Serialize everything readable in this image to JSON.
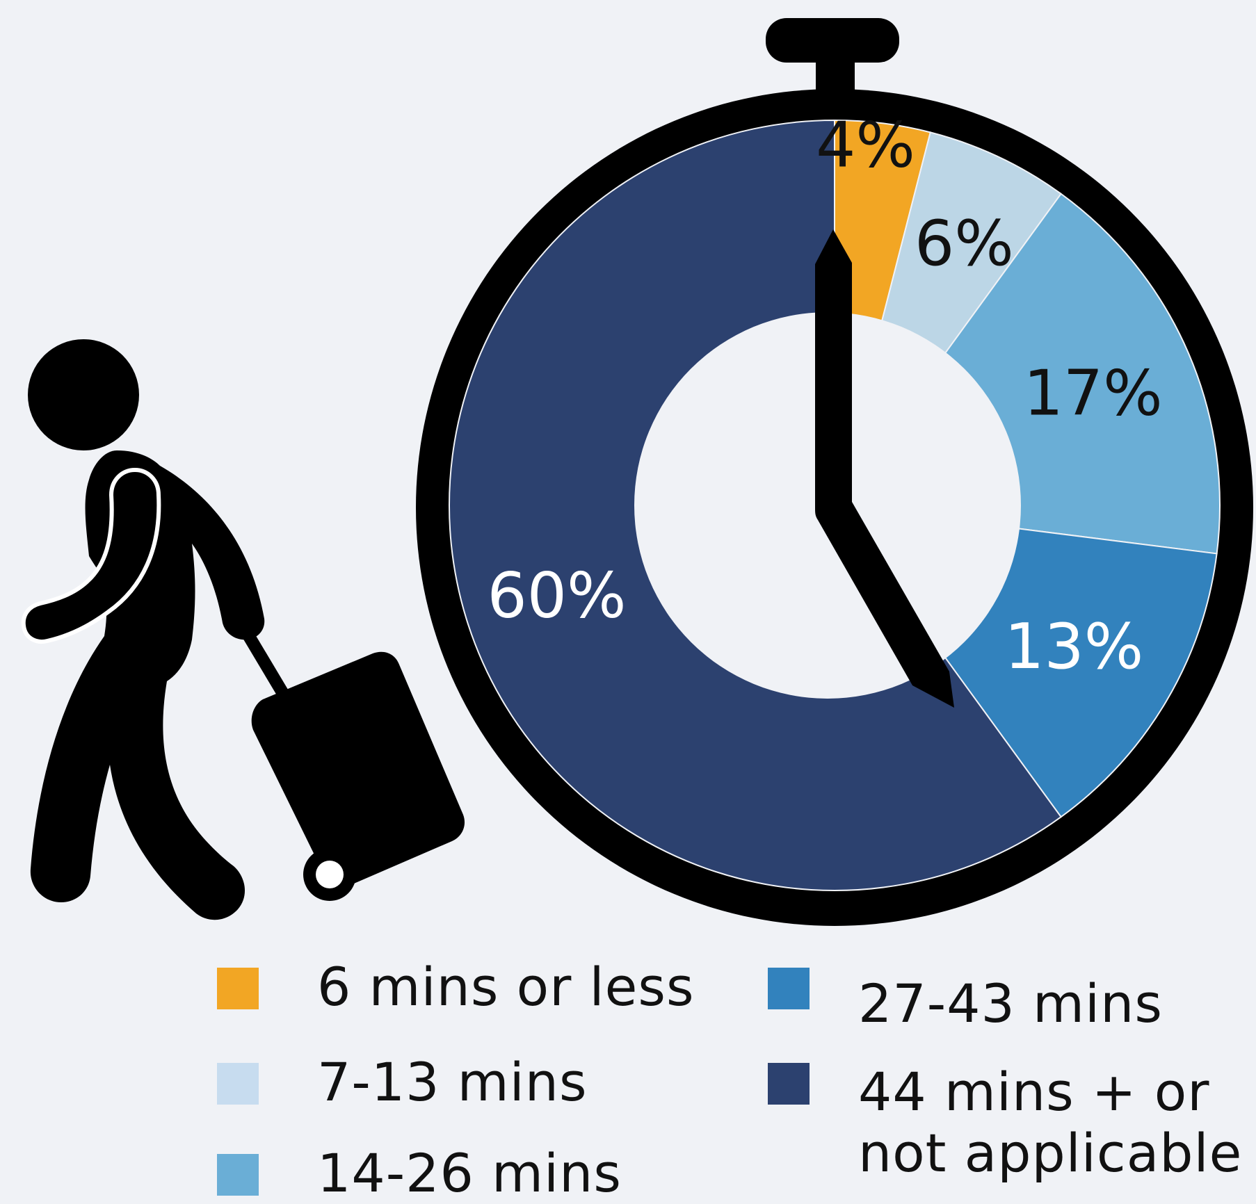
{
  "chart_data": {
    "type": "pie",
    "style": "donut",
    "categories": [
      "6 mins or less",
      "7-13 mins",
      "14-26 mins",
      "27-43 mins",
      "44 mins + or not applicable"
    ],
    "values": [
      4,
      6,
      17,
      13,
      60
    ],
    "labels": [
      "4%",
      "6%",
      "17%",
      "13%",
      "60%"
    ],
    "colors": [
      "#f2a624",
      "#bcd6e6",
      "#6aaed6",
      "#3282bd",
      "#2c416f"
    ],
    "label_colors": [
      "#111111",
      "#111111",
      "#111111",
      "#ffffff",
      "#ffffff"
    ],
    "legend_position": "bottom"
  },
  "legend": {
    "items": [
      {
        "label": "6 mins or less",
        "color": "#f2a624"
      },
      {
        "label": "7-13 mins",
        "color": "#c7dcef"
      },
      {
        "label": "14-26 mins",
        "color": "#6aaed6"
      },
      {
        "label": "27-43 mins",
        "color": "#3282bd"
      },
      {
        "label": "44 mins + or not applicable",
        "color": "#2c416f"
      }
    ]
  },
  "icons": [
    "traveler-with-suitcase-icon",
    "stopwatch-icon"
  ]
}
